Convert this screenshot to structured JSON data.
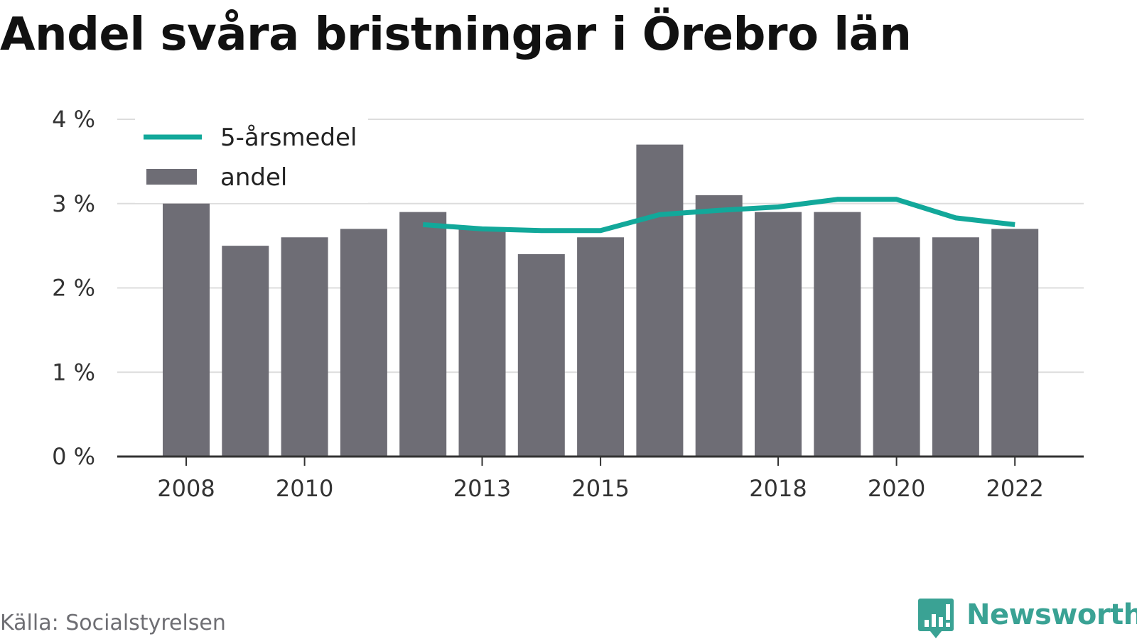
{
  "title": "Andel svåra bristningar i Örebro län",
  "source": "Källa: Socialstyrelsen",
  "logo_text": "Newsworthy",
  "colors": {
    "bar": "#6e6d75",
    "line": "#12a89a",
    "grid": "#dddddd",
    "axis": "#333333",
    "logo": "#3aa294"
  },
  "chart_data": {
    "type": "bar",
    "x": [
      2008,
      2009,
      2010,
      2011,
      2012,
      2013,
      2014,
      2015,
      2016,
      2017,
      2018,
      2019,
      2020,
      2021,
      2022
    ],
    "x_tick_labels": [
      "2008",
      "2010",
      "2013",
      "2015",
      "2018",
      "2020",
      "2022"
    ],
    "y_tick_labels": [
      "0 %",
      "1 %",
      "2 %",
      "3 %",
      "4 %"
    ],
    "ylim": [
      0,
      4
    ],
    "grid": true,
    "legend_position": "top-left",
    "series": [
      {
        "name": "andel",
        "type": "bar",
        "values": [
          3.0,
          2.5,
          2.6,
          2.7,
          2.9,
          2.7,
          2.4,
          2.6,
          3.7,
          3.1,
          2.9,
          2.9,
          2.6,
          2.6,
          2.7
        ]
      },
      {
        "name": "5-årsmedel",
        "type": "line",
        "values": [
          null,
          null,
          null,
          null,
          2.75,
          2.7,
          2.68,
          2.68,
          2.87,
          2.92,
          2.96,
          3.05,
          3.05,
          2.83,
          2.75
        ]
      }
    ]
  }
}
